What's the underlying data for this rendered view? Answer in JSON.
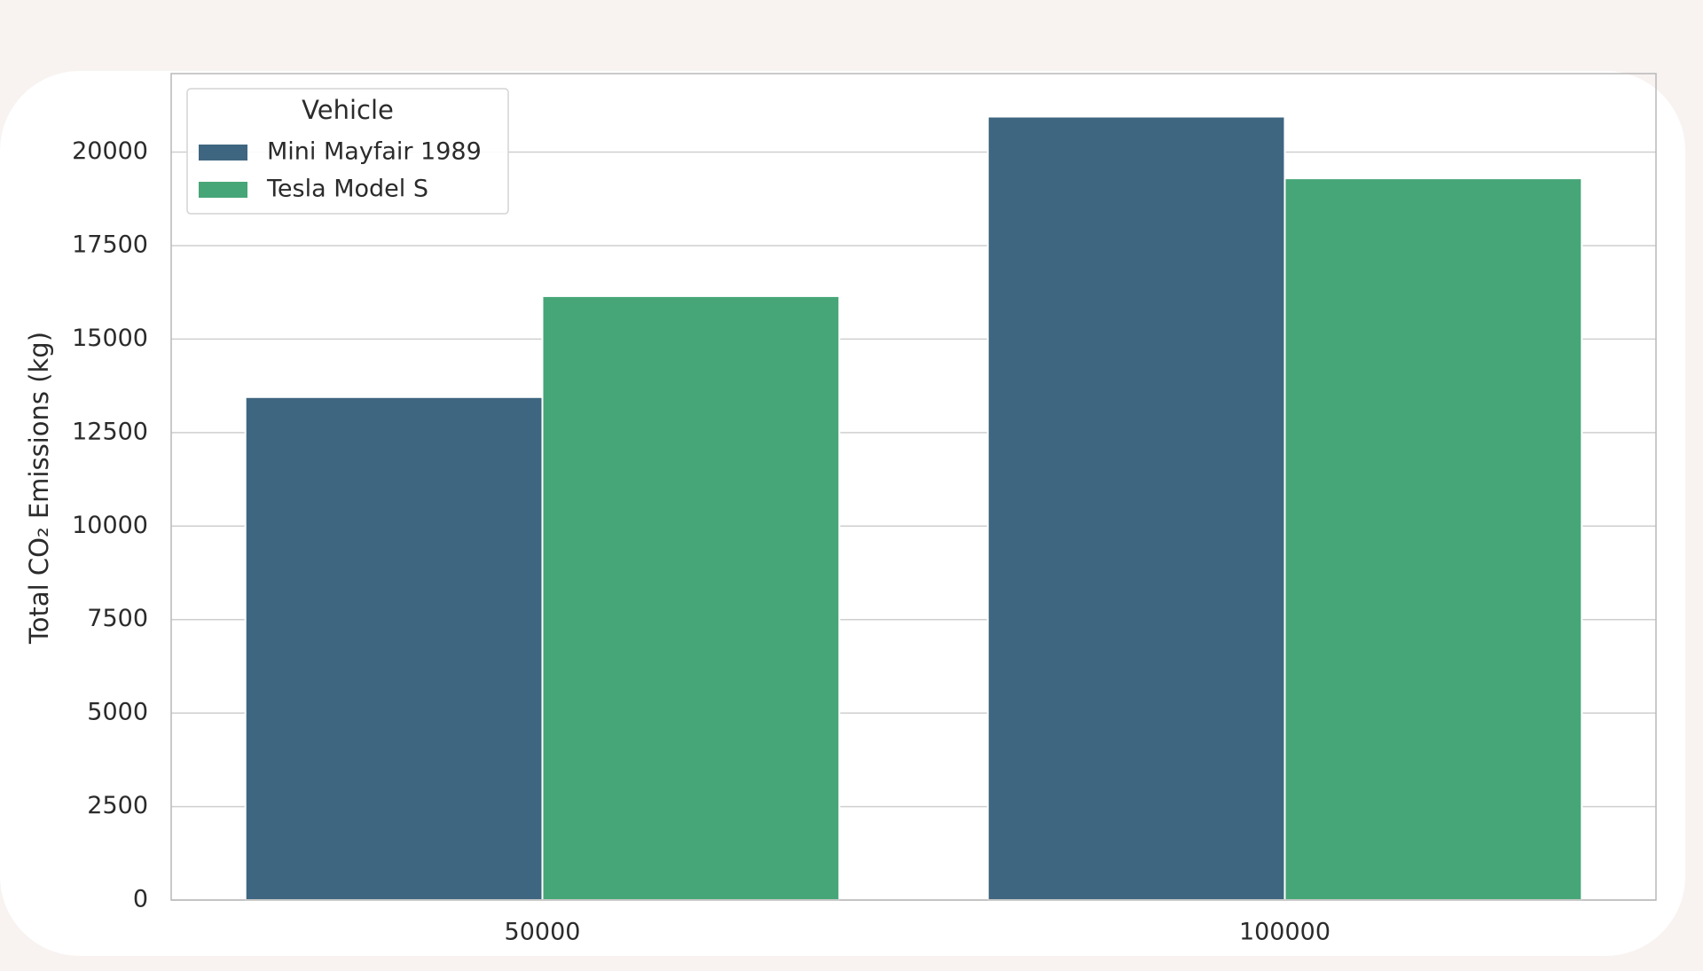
{
  "chart_data": {
    "type": "bar",
    "ylabel": "Total CO₂ Emissions (kg)",
    "categories": [
      "50000",
      "100000"
    ],
    "series": [
      {
        "name": "Mini Mayfair 1989",
        "color": "#3f6680",
        "values": [
          13450,
          20950
        ]
      },
      {
        "name": "Tesla Model S",
        "color": "#46a677",
        "values": [
          16150,
          19300
        ]
      }
    ],
    "legend_title": "Vehicle",
    "legend": "upper left",
    "ylim": [
      0,
      22100
    ],
    "yticks": [
      0,
      2500,
      5000,
      7500,
      10000,
      12500,
      15000,
      17500,
      20000
    ],
    "grid": true
  }
}
